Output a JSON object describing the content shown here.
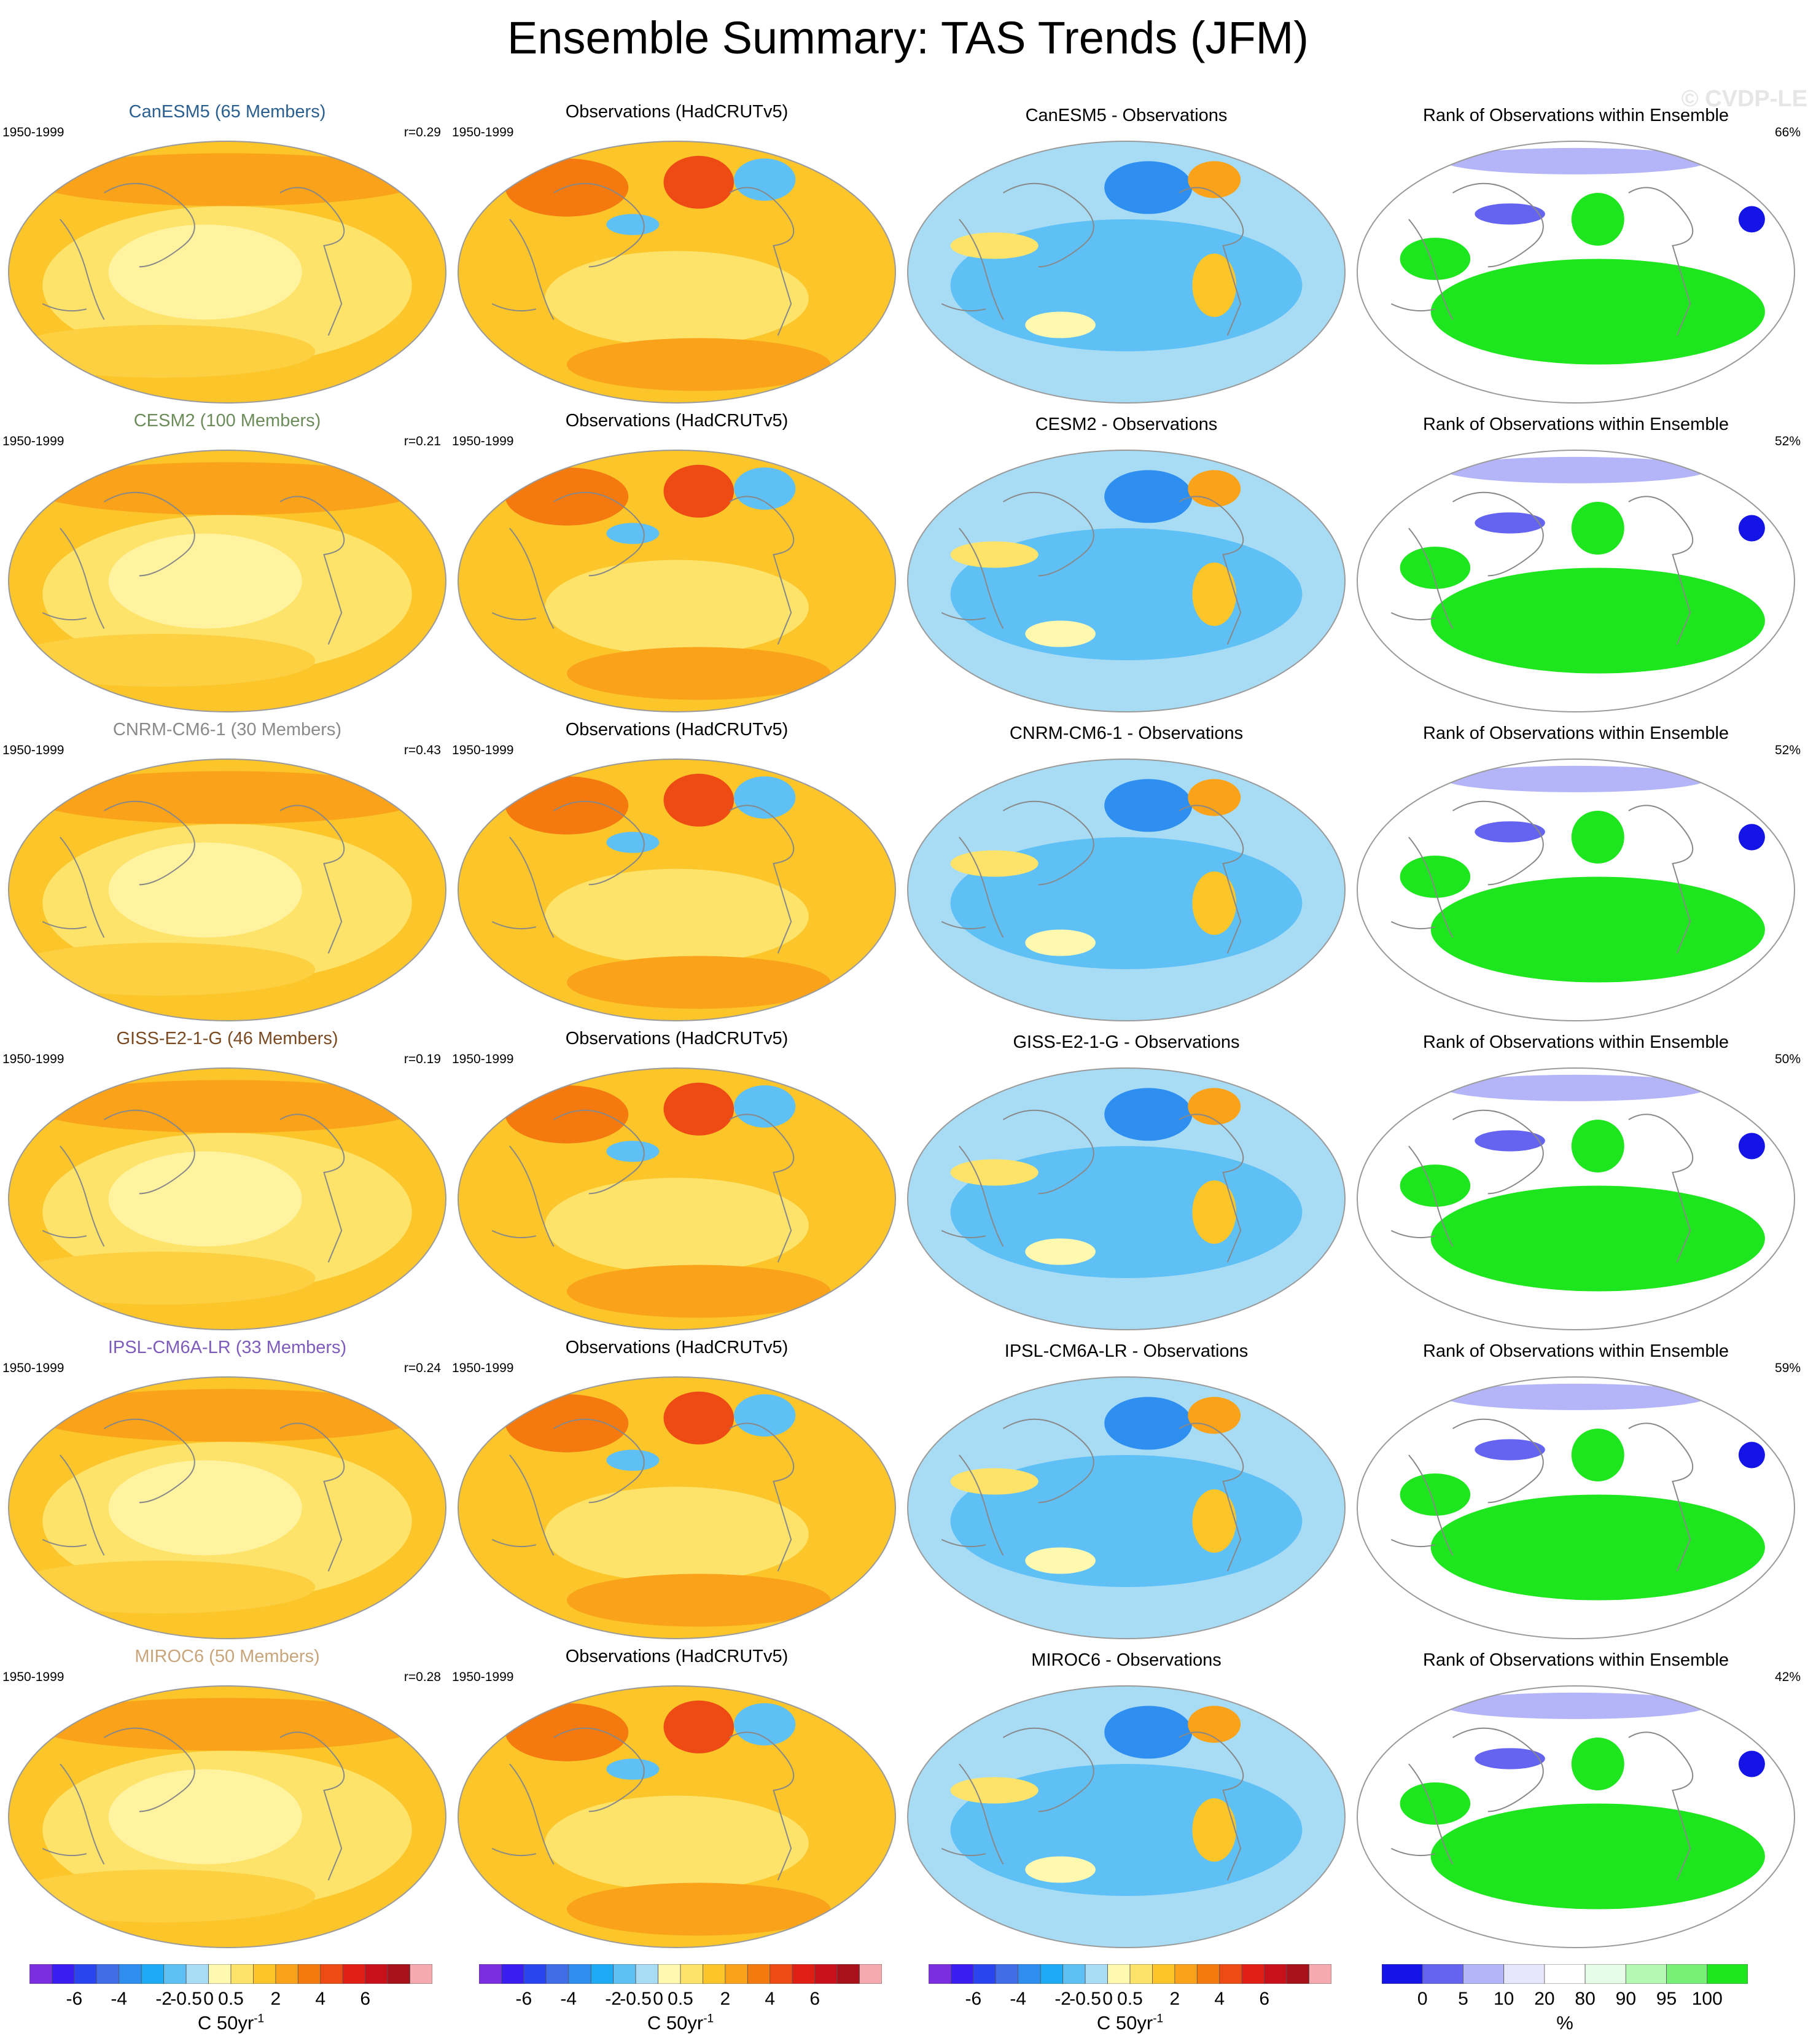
{
  "title": "Ensemble Summary: TAS Trends (JFM)",
  "watermark": "© CVDP-LE",
  "period": "1950-1999",
  "obs_title": "Observations (HadCRUTv5)",
  "rank_title": "Rank of Observations within Ensemble",
  "rows": [
    {
      "model_title": "CanESM5 (65 Members)",
      "title_color": "#2a5f8f",
      "r": "r=0.29",
      "diff_title": "CanESM5 - Observations",
      "rank_pct": "66%"
    },
    {
      "model_title": "CESM2 (100 Members)",
      "title_color": "#6c8c5a",
      "r": "r=0.21",
      "diff_title": "CESM2 - Observations",
      "rank_pct": "52%"
    },
    {
      "model_title": "CNRM-CM6-1 (30 Members)",
      "title_color": "#8a8a8a",
      "r": "r=0.43",
      "diff_title": "CNRM-CM6-1 - Observations",
      "rank_pct": "52%"
    },
    {
      "model_title": "GISS-E2-1-G (46 Members)",
      "title_color": "#7a4a22",
      "r": "r=0.19",
      "diff_title": "GISS-E2-1-G - Observations",
      "rank_pct": "50%"
    },
    {
      "model_title": "IPSL-CM6A-LR (33 Members)",
      "title_color": "#7e5cbc",
      "r": "r=0.24",
      "diff_title": "IPSL-CM6A-LR - Observations",
      "rank_pct": "59%"
    },
    {
      "model_title": "MIROC6 (50 Members)",
      "title_color": "#c8a57a",
      "r": "r=0.28",
      "diff_title": "MIROC6 - Observations",
      "rank_pct": "42%"
    }
  ],
  "trend_colorbar": {
    "unit": "C 50yr",
    "unit_exp": "-1",
    "labels": [
      "-6",
      "-4",
      "-2",
      "-0.5",
      "0",
      "0.5",
      "2",
      "4",
      "6"
    ],
    "colors": [
      "#7b2ee0",
      "#3a1ef0",
      "#2a45f0",
      "#3f6ee8",
      "#2f8ff0",
      "#1faaf5",
      "#5fc0f5",
      "#a8dcf5",
      "#fff9b0",
      "#fde36a",
      "#fcc52a",
      "#f9a21a",
      "#f47a10",
      "#ee4a14",
      "#e01f14",
      "#c8101a",
      "#a8101a",
      "#f5aab0"
    ]
  },
  "rank_colorbar": {
    "unit": "%",
    "labels": [
      "0",
      "5",
      "10",
      "20",
      "80",
      "90",
      "95",
      "100"
    ],
    "colors": [
      "#1414e6",
      "#6464f0",
      "#b4b4f8",
      "#e6e6fc",
      "#ffffff",
      "#e6fce6",
      "#b4f8b4",
      "#78f078",
      "#1ee61e"
    ]
  }
}
